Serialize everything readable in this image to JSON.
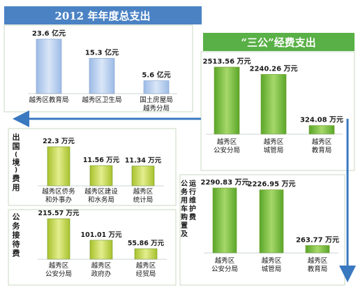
{
  "chart_data": [
    {
      "type": "bar",
      "title": "2012 年年度总支出",
      "categories": [
        "越秀区教育局",
        "越秀区卫生局",
        "国土房屋局\n越秀分局"
      ],
      "values": [
        23.6,
        15.3,
        5.6
      ],
      "value_labels": [
        "23.6 亿元",
        "15.3 亿元",
        "5.6 亿元"
      ],
      "unit": "亿元",
      "color": "#b8cff0"
    },
    {
      "type": "bar",
      "title": "“三公”经费支出",
      "categories": [
        "越秀区\n公安分局",
        "越秀区\n城管局",
        "越秀区\n教育局"
      ],
      "values": [
        2513.56,
        2240.26,
        324.08
      ],
      "value_labels": [
        "2513.56 万元",
        "2240.26 万元",
        "324.08 万元"
      ],
      "unit": "万元",
      "color": "#8cc63f"
    },
    {
      "type": "bar",
      "title": "出国(境)费用",
      "categories": [
        "越秀区侨务\n和外事办",
        "越秀区建设\n和水务局",
        "越秀区\n统计局"
      ],
      "values": [
        22.3,
        11.56,
        11.34
      ],
      "value_labels": [
        "22.3 万元",
        "11.56 万元",
        "11.34 万元"
      ],
      "unit": "万元",
      "color": "#c9dc5a"
    },
    {
      "type": "bar",
      "title": "公务接待费",
      "categories": [
        "越秀区\n公安分局",
        "越秀区\n政府办",
        "越秀区\n经贸局"
      ],
      "values": [
        215.57,
        101.01,
        55.86
      ],
      "value_labels": [
        "215.57 万元",
        "101.01 万元",
        "55.86 万元"
      ],
      "unit": "万元",
      "color": "#c9dc5a"
    },
    {
      "type": "bar",
      "title": "公务用车购置及运行维护费",
      "categories": [
        "越秀区\n公安分局",
        "越秀区\n城管局",
        "越秀区\n教育局"
      ],
      "values": [
        2290.83,
        2226.95,
        263.77
      ],
      "value_labels": [
        "2290.83 万元",
        "2226.95 万元",
        "263.77 万元"
      ],
      "unit": "万元",
      "color": "#8cc63f"
    }
  ],
  "colors": {
    "header_blue": "#4a82c4",
    "header_green": "#58b046",
    "arrow_blue": "#3a78c0"
  }
}
